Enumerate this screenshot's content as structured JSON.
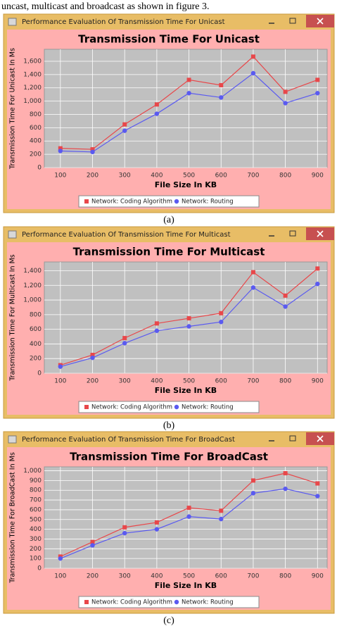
{
  "text": "uncast, multicast and broadcast as shown in figure 3.",
  "chart_data": [
    {
      "type": "line",
      "window_title": "Performance Evaluation Of Transmission Time For Unicast",
      "title": "Transmission Time For Unicast",
      "caption": "(a)",
      "x_label": "File Size In KB",
      "y_label": "Transmission Time For Unicast In Ms",
      "x": [
        100,
        200,
        300,
        400,
        500,
        600,
        700,
        800,
        900
      ],
      "xlim": [
        50,
        930
      ],
      "xticks": [
        100,
        200,
        300,
        400,
        500,
        600,
        700,
        800,
        900
      ],
      "ylim": [
        0,
        1780
      ],
      "yticks": [
        0,
        200,
        400,
        600,
        800,
        {
          "value": 1000,
          "label": "1,000"
        },
        {
          "value": 1200,
          "label": "1,200"
        },
        {
          "value": 1400,
          "label": "1,400"
        },
        {
          "value": 1600,
          "label": "1,600"
        }
      ],
      "grid": true,
      "series": [
        {
          "name": "Network: Coding Algorithm",
          "color": "#e8474a",
          "marker": "square",
          "values": [
            290,
            275,
            650,
            950,
            1320,
            1240,
            1670,
            1140,
            1320
          ]
        },
        {
          "name": "Network: Routing",
          "color": "#5a5af0",
          "marker": "circle",
          "values": [
            250,
            235,
            555,
            810,
            1120,
            1055,
            1420,
            970,
            1120
          ]
        }
      ]
    },
    {
      "type": "line",
      "window_title": "Performance Evaluation Of Transmission Time For Multicast",
      "title": "Transmission Time For Multicast",
      "caption": "(b)",
      "x_label": "File Size In KB",
      "y_label": "Transmission Time For Multicast In Ms",
      "x": [
        100,
        200,
        300,
        400,
        500,
        600,
        700,
        800,
        900
      ],
      "xlim": [
        50,
        930
      ],
      "xticks": [
        100,
        200,
        300,
        400,
        500,
        600,
        700,
        800,
        900
      ],
      "ylim": [
        0,
        1520
      ],
      "yticks": [
        0,
        200,
        400,
        600,
        800,
        {
          "value": 1000,
          "label": "1,000"
        },
        {
          "value": 1200,
          "label": "1,200"
        },
        {
          "value": 1400,
          "label": "1,400"
        }
      ],
      "grid": true,
      "series": [
        {
          "name": "Network: Coding Algorithm",
          "color": "#e8474a",
          "marker": "square",
          "values": [
            110,
            250,
            480,
            680,
            750,
            820,
            1380,
            1060,
            1430
          ]
        },
        {
          "name": "Network: Routing",
          "color": "#5a5af0",
          "marker": "circle",
          "values": [
            90,
            210,
            410,
            580,
            640,
            700,
            1170,
            910,
            1220
          ]
        }
      ]
    },
    {
      "type": "line",
      "window_title": "Performance Evaluation Of Transmission Time For BroadCast",
      "title": "Transmission Time For BroadCast",
      "caption": "(c)",
      "x_label": "File Size In KB",
      "y_label": "Transmission Time For BroadCast In Ms",
      "x": [
        100,
        200,
        300,
        400,
        500,
        600,
        700,
        800,
        900
      ],
      "xlim": [
        50,
        930
      ],
      "xticks": [
        100,
        200,
        300,
        400,
        500,
        600,
        700,
        800,
        900
      ],
      "ylim": [
        0,
        1040
      ],
      "yticks": [
        0,
        100,
        200,
        300,
        400,
        500,
        600,
        700,
        800,
        900,
        {
          "value": 1000,
          "label": "1,000"
        }
      ],
      "grid": true,
      "series": [
        {
          "name": "Network: Coding Algorithm",
          "color": "#e8474a",
          "marker": "square",
          "values": [
            120,
            270,
            420,
            470,
            620,
            590,
            900,
            975,
            870
          ]
        },
        {
          "name": "Network: Routing",
          "color": "#5a5af0",
          "marker": "circle",
          "values": [
            100,
            235,
            360,
            400,
            530,
            505,
            770,
            815,
            740
          ]
        }
      ]
    }
  ]
}
